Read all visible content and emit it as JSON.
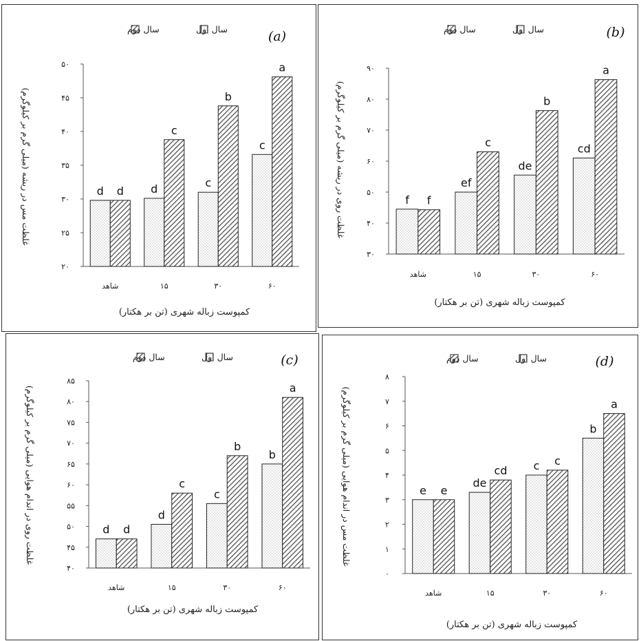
{
  "chart_data": [
    {
      "type": "bar",
      "panel": "(a)",
      "categories": [
        "شاهد",
        "۱۵",
        "۳۰",
        "۶۰"
      ],
      "series": [
        {
          "name": "سال اول",
          "values": [
            29.8,
            30.1,
            31.0,
            36.6
          ],
          "letters": [
            "d",
            "d",
            "c",
            "c"
          ]
        },
        {
          "name": "سال دوم",
          "values": [
            29.8,
            38.8,
            43.8,
            48.1
          ],
          "letters": [
            "d",
            "c",
            "b",
            "a"
          ]
        }
      ],
      "ylim": [
        20,
        50
      ],
      "yticks": [
        "۲۰",
        "۲۵",
        "۳۰",
        "۳۵",
        "۴۰",
        "۴۵",
        "۵۰"
      ],
      "ylabel": "غلظت مس در ریشه (میلی گرم بر کیلوگرم)",
      "xlabel": "کمپوست زباله شهری (تن بر هکتار)",
      "legend_position": "top"
    },
    {
      "type": "bar",
      "panel": "(b)",
      "categories": [
        "شاهد",
        "۱۵",
        "۳۰",
        "۶۰"
      ],
      "series": [
        {
          "name": "سال اول",
          "values": [
            44.5,
            50.0,
            55.5,
            61.0
          ],
          "letters": [
            "f",
            "ef",
            "de",
            "cd"
          ]
        },
        {
          "name": "سال دوم",
          "values": [
            44.3,
            63.0,
            76.3,
            86.3
          ],
          "letters": [
            "f",
            "c",
            "b",
            "a"
          ]
        }
      ],
      "ylim": [
        30,
        90
      ],
      "yticks": [
        "۳۰",
        "۴۰",
        "۵۰",
        "۶۰",
        "۷۰",
        "۸۰",
        "۹۰"
      ],
      "ylabel": "غلظت روی در ریشه (میلی گرم بر کیلوگرم)",
      "xlabel": "کمپوست زباله شهری (تن بر هکتار)",
      "legend_position": "top"
    },
    {
      "type": "bar",
      "panel": "(c)",
      "categories": [
        "شاهد",
        "۱۵",
        "۳۰",
        "۶۰"
      ],
      "series": [
        {
          "name": "سال اول",
          "values": [
            47.0,
            50.5,
            55.5,
            65.0
          ],
          "letters": [
            "d",
            "d",
            "c",
            "b"
          ]
        },
        {
          "name": "سال دوم",
          "values": [
            47.0,
            58.0,
            67.0,
            81.0
          ],
          "letters": [
            "d",
            "c",
            "b",
            "a"
          ]
        }
      ],
      "ylim": [
        40,
        85
      ],
      "yticks": [
        "۴۰",
        "۴۵",
        "۵۰",
        "۵۵",
        "۶۰",
        "۶۵",
        "۷۰",
        "۷۵",
        "۸۰",
        "۸۵"
      ],
      "ylabel": "غلظت روی در اندام هوایی (میلی گرم بر کیلوگرم)",
      "xlabel": "کمپوست زباله شهری (تن بر هکتار)",
      "legend_position": "top"
    },
    {
      "type": "bar",
      "panel": "(d)",
      "categories": [
        "شاهد",
        "۱۵",
        "۳۰",
        "۶۰"
      ],
      "series": [
        {
          "name": "سال اول",
          "values": [
            3.0,
            3.3,
            4.0,
            5.5
          ],
          "letters": [
            "e",
            "de",
            "c",
            "b"
          ]
        },
        {
          "name": "سال دوم",
          "values": [
            3.0,
            3.8,
            4.2,
            6.5
          ],
          "letters": [
            "e",
            "cd",
            "c",
            "a"
          ]
        }
      ],
      "ylim": [
        0,
        8
      ],
      "yticks": [
        "۰",
        "۱",
        "۲",
        "۳",
        "۴",
        "۵",
        "۶",
        "۷",
        "۸"
      ],
      "ylabel": "غلظت مس در اندام هوایی (میلی گرم بر کیلوگرم)",
      "xlabel": "کمپوست زباله شهری (تن بر هکتار)",
      "legend_position": "top"
    }
  ]
}
